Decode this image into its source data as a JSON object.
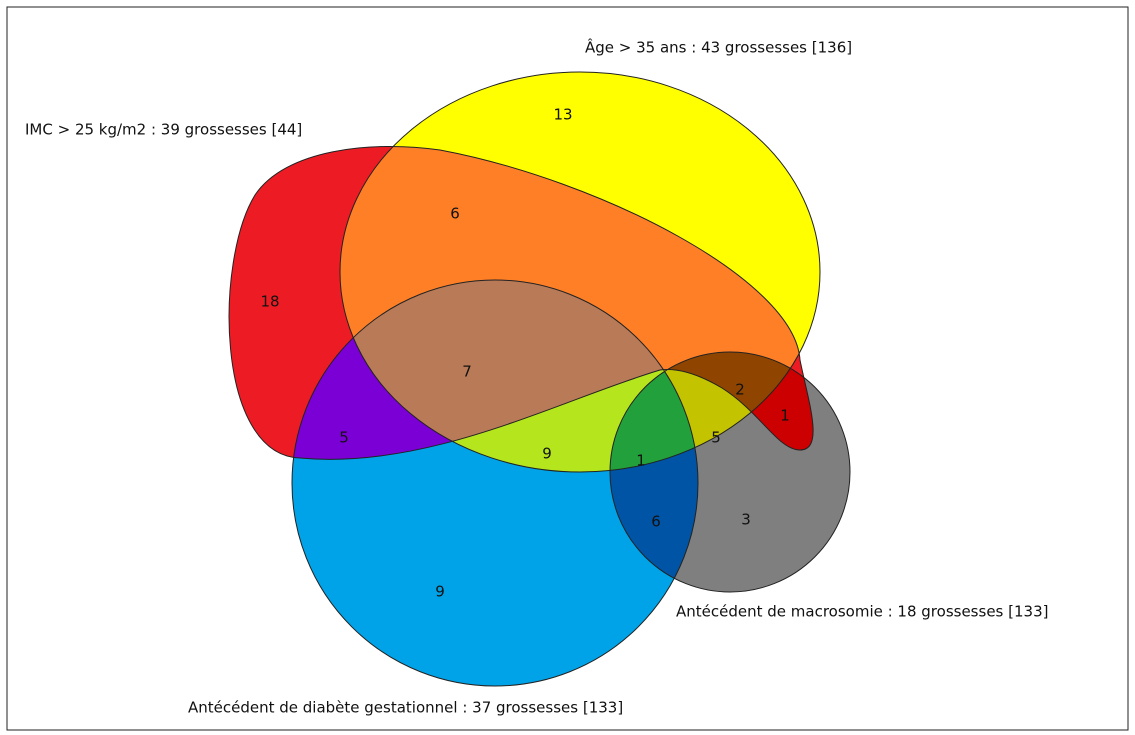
{
  "sets": [
    {
      "label": "Âge > 35 ans : 43 grossesses [136]"
    },
    {
      "label": "IMC > 25 kg/m2 : 39 grossesses [44]"
    },
    {
      "label": "Antécédent de macrosomie : 18 grossesses [133]"
    },
    {
      "label": "Antécédent de diabète gestationnel : 37 grossesses [133]"
    }
  ],
  "regions": [
    13,
    6,
    18,
    7,
    2,
    1,
    5,
    5,
    9,
    1,
    6,
    3,
    9
  ]
}
